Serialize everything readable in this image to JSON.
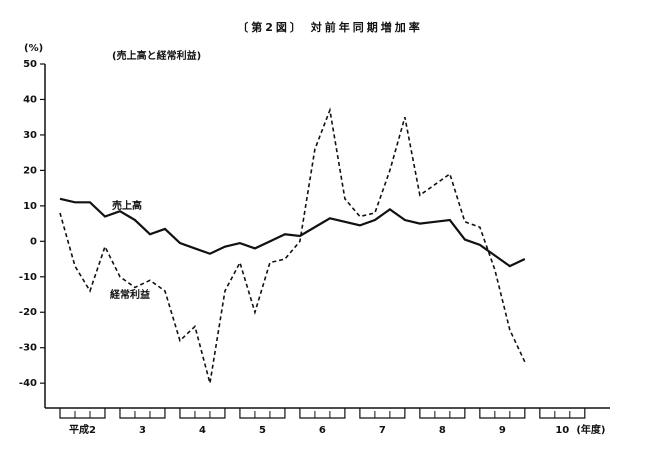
{
  "chart_data": {
    "type": "line",
    "title": "〔第2図〕 対前年同期増加率",
    "subtitle": "(売上高と経常利益)",
    "y_label": "(%)",
    "x_label": "(年度)",
    "x": [
      2,
      2.25,
      2.5,
      2.75,
      3,
      3.25,
      3.5,
      3.75,
      4,
      4.25,
      4.5,
      4.75,
      5,
      5.25,
      5.5,
      5.75,
      6,
      6.25,
      6.5,
      6.75,
      7,
      7.25,
      7.5,
      7.75,
      8,
      8.25,
      8.5,
      8.75,
      9,
      9.25,
      9.5,
      9.75
    ],
    "series": [
      {
        "name": "売上高",
        "color": "#111111",
        "dash": false,
        "values": [
          12,
          11,
          11,
          7,
          8.5,
          6,
          2,
          3.5,
          -0.5,
          -2,
          -3.5,
          -1.5,
          -0.5,
          -2,
          0,
          2,
          1.5,
          4,
          6.5,
          5.5,
          4.5,
          6,
          9,
          6,
          5,
          5.5,
          6,
          0.5,
          -1,
          -4,
          -7,
          -5
        ]
      },
      {
        "name": "経常利益",
        "color": "#111111",
        "dash": true,
        "values": [
          8,
          -7,
          -14,
          -1.5,
          -10,
          -13,
          -11,
          -14,
          -28,
          -24,
          -40,
          -14,
          -6,
          -20,
          -6,
          -5,
          0,
          26,
          37,
          12,
          7,
          8,
          20,
          35,
          13,
          16,
          19,
          5.5,
          4,
          -8,
          -25,
          -34
        ]
      }
    ],
    "xlim": [
      1.75,
      11.17
    ],
    "xticks": [
      {
        "value": 2,
        "label": "平成2"
      },
      3,
      4,
      5,
      6,
      7,
      8,
      9,
      10
    ],
    "ylim": [
      -47,
      50
    ],
    "yticks": [
      50,
      40,
      30,
      20,
      10,
      0,
      -10,
      -20,
      -30,
      -40
    ],
    "grid": false
  }
}
